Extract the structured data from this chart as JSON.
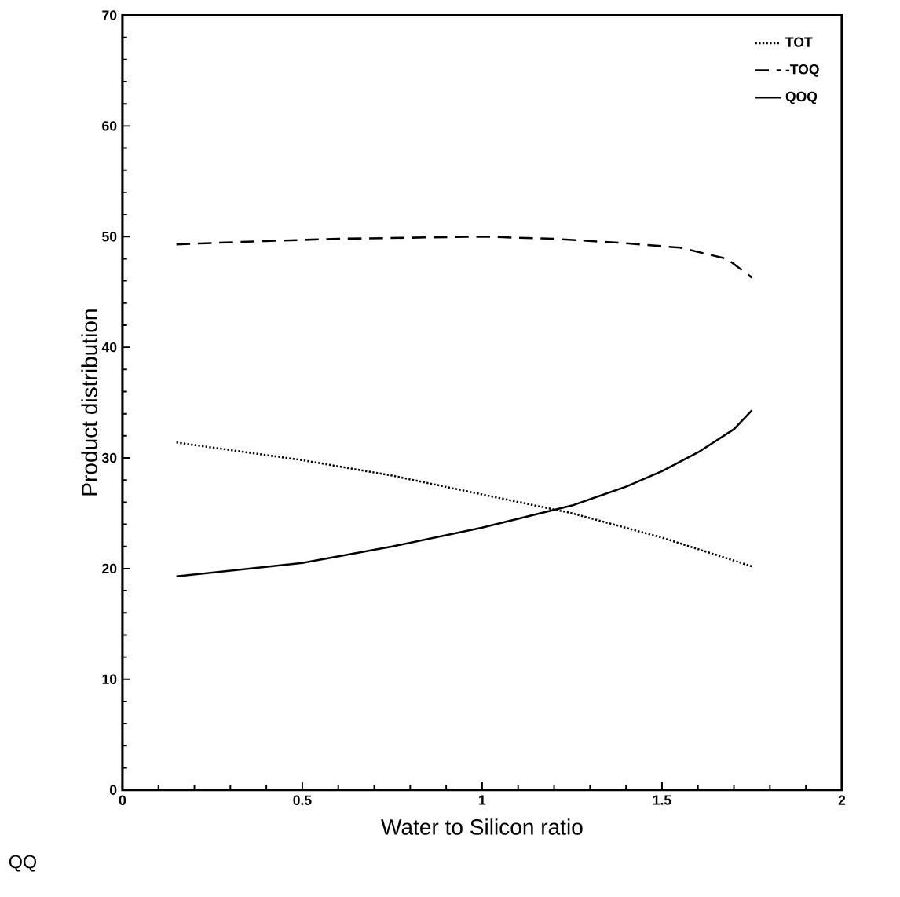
{
  "chart_data": {
    "type": "line",
    "xlabel": "Water to Silicon ratio",
    "ylabel": "Product distribution",
    "xlim": [
      0,
      2
    ],
    "xticks": [
      0,
      0.5,
      1,
      1.5,
      2
    ],
    "ylim": [
      0,
      70
    ],
    "yticks": [
      0,
      10,
      20,
      30,
      40,
      50,
      60,
      70
    ],
    "legend": "top right",
    "grid": false,
    "marker": "none",
    "annotations": [
      "QQ"
    ],
    "series": [
      {
        "name": "TOT",
        "color": "#000000",
        "line_style": "dotted",
        "x": [
          0.15,
          0.5,
          0.75,
          1.0,
          1.25,
          1.5,
          1.75
        ],
        "values": [
          31.4,
          29.8,
          28.4,
          26.7,
          25.0,
          22.8,
          20.2
        ]
      },
      {
        "name": "-TOQ",
        "color": "#000000",
        "line_style": "dashed",
        "x": [
          0.15,
          0.4,
          0.6,
          0.8,
          1.0,
          1.2,
          1.4,
          1.55,
          1.68,
          1.75
        ],
        "values": [
          49.3,
          49.6,
          49.8,
          49.9,
          50.0,
          49.8,
          49.4,
          49.0,
          48.0,
          46.3
        ]
      },
      {
        "name": "QOQ",
        "color": "#000000",
        "line_style": "solid",
        "x": [
          0.15,
          0.5,
          0.75,
          1.0,
          1.25,
          1.4,
          1.5,
          1.6,
          1.7,
          1.75
        ],
        "values": [
          19.3,
          20.5,
          22.0,
          23.7,
          25.7,
          27.4,
          28.8,
          30.5,
          32.6,
          34.3
        ]
      }
    ]
  }
}
